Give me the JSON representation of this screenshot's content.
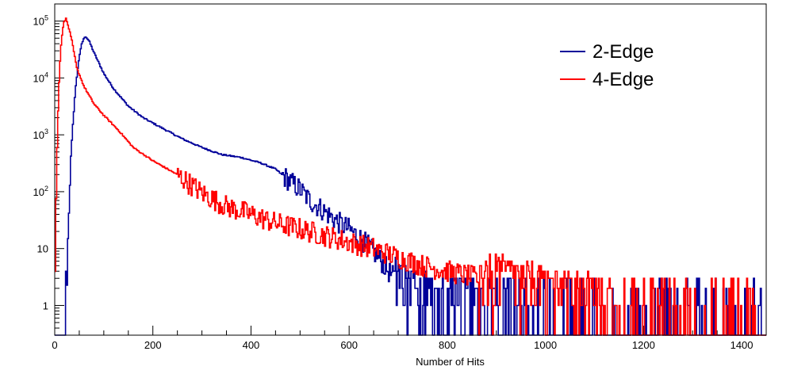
{
  "chart_data": {
    "type": "line",
    "style": "step-histogram",
    "title": "",
    "xlabel": "Number of Hits",
    "ylabel": "",
    "xlim": [
      0,
      1450
    ],
    "ylim": [
      0.3,
      200000
    ],
    "yscale": "log",
    "x_ticks": [
      0,
      200,
      400,
      600,
      800,
      1000,
      1200,
      1400
    ],
    "y_ticks": [
      {
        "value": 1,
        "label": "1"
      },
      {
        "value": 10,
        "label": "10"
      },
      {
        "value": 100,
        "label": "10^2"
      },
      {
        "value": 1000,
        "label": "10^3"
      },
      {
        "value": 10000,
        "label": "10^4"
      },
      {
        "value": 100000,
        "label": "10^5"
      }
    ],
    "legend": {
      "position": "top-right"
    },
    "series": [
      {
        "name": "2-Edge",
        "color": "#000099",
        "points": [
          [
            0,
            0.3
          ],
          [
            18,
            0.3
          ],
          [
            22,
            1
          ],
          [
            25,
            3
          ],
          [
            28,
            30
          ],
          [
            32,
            300
          ],
          [
            37,
            1500
          ],
          [
            42,
            6000
          ],
          [
            48,
            18000
          ],
          [
            55,
            40000
          ],
          [
            62,
            55000
          ],
          [
            70,
            45000
          ],
          [
            80,
            28000
          ],
          [
            100,
            12000
          ],
          [
            120,
            6500
          ],
          [
            150,
            3200
          ],
          [
            180,
            2000
          ],
          [
            220,
            1300
          ],
          [
            260,
            850
          ],
          [
            300,
            600
          ],
          [
            340,
            450
          ],
          [
            380,
            400
          ],
          [
            420,
            320
          ],
          [
            450,
            250
          ],
          [
            480,
            150
          ],
          [
            500,
            110
          ],
          [
            520,
            70
          ],
          [
            550,
            45
          ],
          [
            580,
            28
          ],
          [
            600,
            22
          ],
          [
            620,
            16
          ],
          [
            640,
            11
          ],
          [
            660,
            7
          ],
          [
            680,
            4
          ],
          [
            700,
            2.5
          ],
          [
            720,
            1.8
          ],
          [
            740,
            1.4
          ],
          [
            780,
            1
          ],
          [
            820,
            1
          ],
          [
            860,
            1
          ],
          [
            900,
            0.9
          ],
          [
            950,
            0.8
          ],
          [
            1000,
            0.6
          ],
          [
            1100,
            0.5
          ],
          [
            1200,
            0.4
          ],
          [
            1300,
            0.4
          ],
          [
            1450,
            0.4
          ]
        ]
      },
      {
        "name": "4-Edge",
        "color": "#ff0000",
        "points": [
          [
            0,
            0.7
          ],
          [
            3,
            100
          ],
          [
            6,
            1500
          ],
          [
            10,
            15000
          ],
          [
            14,
            50000
          ],
          [
            19,
            100000
          ],
          [
            23,
            110000
          ],
          [
            28,
            80000
          ],
          [
            35,
            45000
          ],
          [
            45,
            15000
          ],
          [
            60,
            7000
          ],
          [
            80,
            3500
          ],
          [
            100,
            2200
          ],
          [
            130,
            1200
          ],
          [
            160,
            600
          ],
          [
            200,
            350
          ],
          [
            250,
            200
          ],
          [
            300,
            95
          ],
          [
            350,
            55
          ],
          [
            400,
            40
          ],
          [
            450,
            28
          ],
          [
            500,
            22
          ],
          [
            550,
            17
          ],
          [
            600,
            13
          ],
          [
            650,
            10
          ],
          [
            700,
            7
          ],
          [
            750,
            5
          ],
          [
            800,
            4
          ],
          [
            850,
            3.2
          ],
          [
            900,
            2.5
          ],
          [
            950,
            2
          ],
          [
            1000,
            1.6
          ],
          [
            1050,
            1.3
          ],
          [
            1100,
            1
          ],
          [
            1150,
            0.8
          ],
          [
            1200,
            0.6
          ],
          [
            1300,
            0.5
          ],
          [
            1450,
            0.4
          ]
        ]
      }
    ]
  }
}
